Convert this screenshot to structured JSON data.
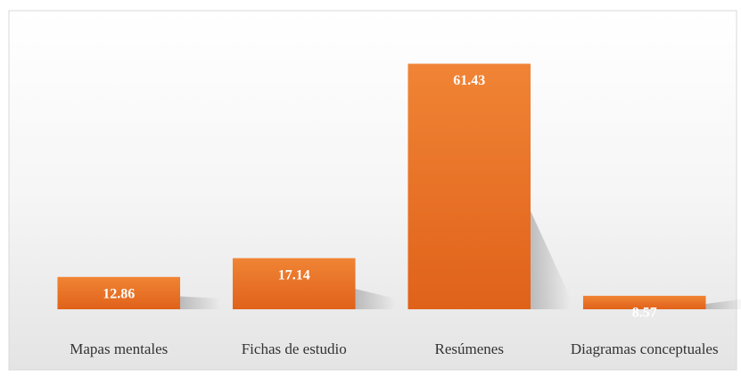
{
  "chart_data": {
    "type": "bar",
    "categories": [
      "Mapas mentales",
      "Fichas de estudio",
      "Resúmenes",
      "Diagramas conceptuales"
    ],
    "values": [
      12.86,
      17.14,
      61.43,
      8.57
    ],
    "color": "#e8691f",
    "ylim": [
      5.5,
      66
    ]
  }
}
